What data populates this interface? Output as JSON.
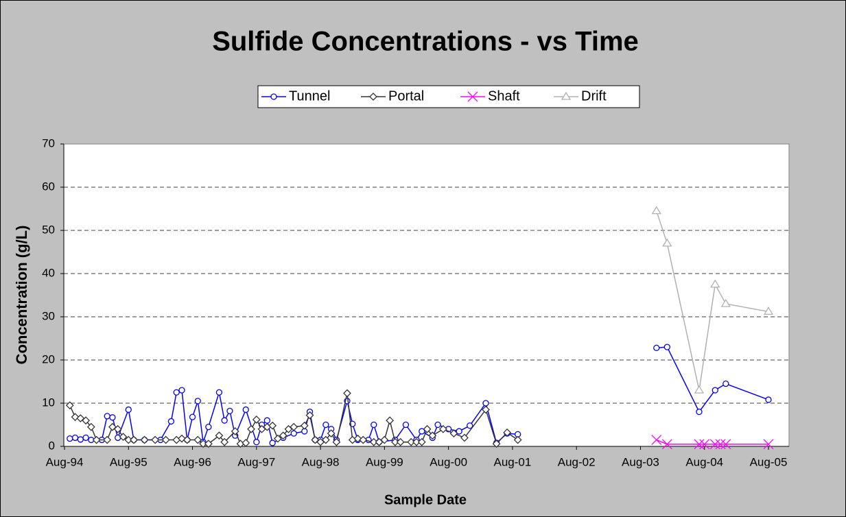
{
  "chart_data": {
    "type": "line",
    "title": "Sulfide Concentrations - vs Time",
    "xlabel": "Sample Date",
    "ylabel": "Concentration (g/L)",
    "xlim": [
      "1994-08",
      "2005-08"
    ],
    "xticks": [
      {
        "value": "1994-08",
        "label": "Aug-94"
      },
      {
        "value": "1995-08",
        "label": "Aug-95"
      },
      {
        "value": "1996-08",
        "label": "Aug-96"
      },
      {
        "value": "1997-08",
        "label": "Aug-97"
      },
      {
        "value": "1998-08",
        "label": "Aug-98"
      },
      {
        "value": "1999-08",
        "label": "Aug-99"
      },
      {
        "value": "2000-08",
        "label": "Aug-00"
      },
      {
        "value": "2001-08",
        "label": "Aug-01"
      },
      {
        "value": "2002-08",
        "label": "Aug-02"
      },
      {
        "value": "2003-08",
        "label": "Aug-03"
      },
      {
        "value": "2004-08",
        "label": "Aug-04"
      },
      {
        "value": "2005-08",
        "label": "Aug-05"
      }
    ],
    "ylim": [
      0,
      70
    ],
    "yticks": [
      0,
      10,
      20,
      30,
      40,
      50,
      60,
      70
    ],
    "grid": true,
    "series": [
      {
        "name": "Tunnel",
        "color": "#0000ff",
        "marker": "circle",
        "x": [
          "1994-09",
          "1994-10",
          "1994-11",
          "1994-12",
          "1995-01",
          "1995-03",
          "1995-04",
          "1995-05",
          "1995-06",
          "1995-08",
          "1995-09",
          "1995-11",
          "1996-02",
          "1996-04",
          "1996-05",
          "1996-06",
          "1996-07",
          "1996-08",
          "1996-09",
          "1996-10",
          "1996-11",
          "1997-01",
          "1997-02",
          "1997-03",
          "1997-04",
          "1997-06",
          "1997-08",
          "1997-09",
          "1997-10",
          "1997-11",
          "1998-01",
          "1998-03",
          "1998-05",
          "1998-06",
          "1998-07",
          "1998-08",
          "1998-09",
          "1998-10",
          "1998-11",
          "1999-01",
          "1999-02",
          "1999-03",
          "1999-05",
          "1999-06",
          "1999-07",
          "1999-10",
          "1999-12",
          "2000-02",
          "2000-03",
          "2000-05",
          "2000-06",
          "2000-08",
          "2000-10",
          "2000-12",
          "2001-03",
          "2001-05",
          "2001-07",
          "2001-09",
          null,
          "2003-11",
          "2004-01",
          "2004-07",
          "2004-10",
          "2004-12",
          "2005-08"
        ],
        "values": [
          1.8,
          2.0,
          1.6,
          2.0,
          1.5,
          1.5,
          7.0,
          6.7,
          2.0,
          8.5,
          1.5,
          1.5,
          1.5,
          5.8,
          12.5,
          13.0,
          1.5,
          6.8,
          10.5,
          1.0,
          4.5,
          12.5,
          6.0,
          8.2,
          2.5,
          8.5,
          1.0,
          5.0,
          6.0,
          0.8,
          2.0,
          3.0,
          3.5,
          8.0,
          1.5,
          1.5,
          5.0,
          4.0,
          1.5,
          10.5,
          5.2,
          1.5,
          1.5,
          5.0,
          1.0,
          1.5,
          5.0,
          1.5,
          3.5,
          2.0,
          5.0,
          4.0,
          3.5,
          4.8,
          10.0,
          0.8,
          3.0,
          2.8,
          null,
          22.8,
          23.0,
          8.0,
          13.0,
          14.5,
          10.8
        ]
      },
      {
        "name": "Portal",
        "color": "#333333",
        "marker": "diamond",
        "x": [
          "1994-09",
          "1994-10",
          "1994-11",
          "1994-12",
          "1995-01",
          "1995-02",
          "1995-04",
          "1995-05",
          "1995-06",
          "1995-07",
          "1995-08",
          "1995-09",
          "1995-11",
          "1996-01",
          "1996-03",
          "1996-05",
          "1996-06",
          "1996-07",
          "1996-09",
          "1996-10",
          "1996-11",
          "1997-01",
          "1997-02",
          "1997-04",
          "1997-05",
          "1997-06",
          "1997-07",
          "1997-08",
          "1997-09",
          "1997-10",
          "1997-11",
          "1997-12",
          "1998-01",
          "1998-02",
          "1998-03",
          "1998-05",
          "1998-06",
          "1998-07",
          "1998-08",
          "1998-09",
          "1998-10",
          "1998-11",
          "1999-01",
          "1999-02",
          "1999-03",
          "1999-04",
          "1999-06",
          "1999-07",
          "1999-08",
          "1999-09",
          "1999-10",
          "1999-11",
          "2000-01",
          "2000-02",
          "2000-03",
          "2000-04",
          "2000-05",
          "2000-07",
          "2000-09",
          "2000-11",
          "2001-03",
          "2001-05",
          "2001-07",
          "2001-09"
        ],
        "values": [
          9.5,
          6.8,
          6.5,
          6.0,
          4.5,
          1.5,
          1.5,
          4.5,
          4.0,
          2.2,
          1.5,
          1.5,
          1.5,
          1.5,
          1.5,
          1.5,
          1.8,
          1.5,
          1.5,
          0.6,
          0.6,
          2.5,
          1.0,
          3.5,
          0.6,
          0.8,
          4.0,
          6.2,
          4.0,
          4.5,
          4.8,
          1.8,
          2.5,
          4.0,
          4.5,
          4.8,
          7.2,
          1.5,
          1.0,
          1.5,
          3.0,
          1.0,
          12.3,
          1.5,
          1.8,
          1.5,
          1.0,
          1.0,
          1.5,
          6.0,
          1.0,
          1.0,
          1.0,
          1.0,
          1.0,
          4.0,
          2.5,
          4.0,
          3.0,
          2.0,
          8.5,
          0.6,
          3.2,
          1.5
        ]
      },
      {
        "name": "Shaft",
        "color": "#ff00ff",
        "marker": "x",
        "x": [
          "2003-11",
          "2004-01",
          "2004-07",
          "2004-08",
          "2004-10",
          "2004-11",
          "2004-12",
          "2005-08"
        ],
        "values": [
          1.5,
          0.5,
          0.5,
          0.5,
          0.5,
          0.5,
          0.5,
          0.5
        ]
      },
      {
        "name": "Drift",
        "color": "#b0b0b0",
        "marker": "triangle",
        "x": [
          "2003-11",
          "2004-01",
          "2004-07",
          "2004-10",
          "2004-12",
          "2005-08"
        ],
        "values": [
          54.5,
          47.0,
          13.0,
          37.5,
          33.0,
          31.2
        ]
      }
    ]
  }
}
